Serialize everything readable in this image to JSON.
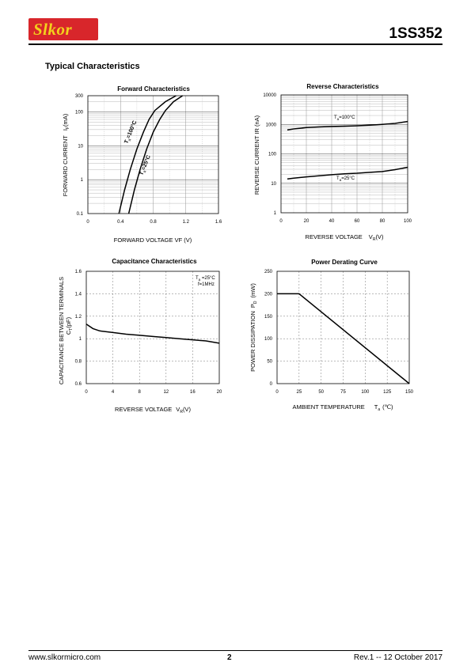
{
  "header": {
    "logo_text": "Slkor",
    "part_number": "1SS352",
    "brand_color": "#d8262b",
    "logo_text_color": "#f3d21c"
  },
  "section_title": "Typical Characteristics",
  "footer": {
    "website": "www.slkormicro.com",
    "page_number": "2",
    "revision": "Rev.1 -- 12 October 2017"
  },
  "chart_data": [
    {
      "type": "line",
      "title": "Forward  Characteristics",
      "xlabel": "FORWARD VOLTAGE  VF (V)",
      "ylabel": "FORWARD CURRENT   IF(mA)",
      "ylabel_main": "FORWARD CURRENT",
      "ylabel_sym": "I",
      "ylabel_sub": "F",
      "ylabel_unit": "(mA)",
      "xlim": [
        0,
        1.6
      ],
      "ylim": [
        0.1,
        300
      ],
      "yscale": "log",
      "xticks": [
        "0",
        "0.4",
        "0.8",
        "1.2",
        "1.6"
      ],
      "yticks": [
        "0.1",
        "1",
        "10",
        "100",
        "300"
      ],
      "grid": true,
      "series": [
        {
          "name": "Ta=100°C",
          "label_main": "T",
          "label_sub": "a",
          "label_rest": "=100°C",
          "x": [
            0.38,
            0.45,
            0.52,
            0.6,
            0.68,
            0.75,
            0.82,
            0.95,
            1.08
          ],
          "y": [
            0.1,
            0.5,
            2,
            8,
            25,
            60,
            110,
            200,
            300
          ]
        },
        {
          "name": "Ta=25°C",
          "label_main": "T",
          "label_sub": "a",
          "label_rest": "=25°C",
          "x": [
            0.5,
            0.57,
            0.64,
            0.72,
            0.8,
            0.88,
            0.95,
            1.05,
            1.16
          ],
          "y": [
            0.1,
            0.5,
            2,
            8,
            25,
            60,
            110,
            200,
            300
          ]
        }
      ]
    },
    {
      "type": "line",
      "title": "Reverse  Characteristics",
      "xlabel": "REVERSE VOLTAGE    VR(V)",
      "xlabel_main": "REVERSE VOLTAGE",
      "xlabel_sym": "V",
      "xlabel_sub": "R",
      "xlabel_unit": "(V)",
      "ylabel": "REVERSE CURRENT   IR  (nA)",
      "xlim": [
        0,
        100
      ],
      "ylim": [
        1,
        10000
      ],
      "yscale": "log",
      "xticks": [
        "0",
        "20",
        "40",
        "60",
        "80",
        "100"
      ],
      "yticks": [
        "1",
        "10",
        "100",
        "1000",
        "10000"
      ],
      "grid": true,
      "series": [
        {
          "name": "Ta=100°C",
          "label_main": "T",
          "label_sub": "a",
          "label_rest": "=100°C",
          "x": [
            5,
            10,
            20,
            30,
            40,
            50,
            60,
            70,
            80,
            90,
            100
          ],
          "y": [
            650,
            700,
            780,
            820,
            850,
            870,
            900,
            940,
            1000,
            1080,
            1250
          ]
        },
        {
          "name": "Ta=25°C",
          "label_main": "T",
          "label_sub": "a",
          "label_rest": "=25°C",
          "x": [
            5,
            10,
            20,
            30,
            40,
            50,
            60,
            70,
            80,
            90,
            100
          ],
          "y": [
            14,
            15,
            16.5,
            18,
            19.5,
            21,
            22,
            23.5,
            25,
            29,
            35
          ]
        }
      ]
    },
    {
      "type": "line",
      "title": "Capacitance Characteristics",
      "xlabel": "REVERSE VOLTAGE   VR(V)",
      "xlabel_main": "REVERSE VOLTAGE",
      "xlabel_sym": "V",
      "xlabel_sub": "R",
      "xlabel_unit": "(V)",
      "ylabel": "CAPACITANCE BETWEEN TERMINALS  CT (pF)",
      "ylabel_main": "CAPACITANCE BETWEEN TERMINALS",
      "ylabel_sym": "C",
      "ylabel_sub": "T",
      "ylabel_unit": "(pF)",
      "xlim": [
        0,
        20
      ],
      "ylim": [
        0.6,
        1.6
      ],
      "xticks": [
        "0",
        "4",
        "8",
        "12",
        "16",
        "20"
      ],
      "yticks": [
        "0.6",
        "0.8",
        "1",
        "1.2",
        "1.4",
        "1.6"
      ],
      "grid": true,
      "annotation": [
        "Ta =25°C",
        "f=1MHz"
      ],
      "annotation_sym": "T",
      "annotation_sub": "a",
      "annotation_rest": " =25°C",
      "series": [
        {
          "name": "",
          "x": [
            0,
            1,
            2,
            4,
            6,
            8,
            10,
            12,
            14,
            16,
            18,
            20
          ],
          "y": [
            1.13,
            1.09,
            1.07,
            1.055,
            1.04,
            1.03,
            1.02,
            1.01,
            1.0,
            0.99,
            0.98,
            0.96
          ]
        }
      ]
    },
    {
      "type": "line",
      "title": "Power Derating Curve",
      "xlabel": "AMBIENT TEMPERATURE     Ta  (℃)",
      "xlabel_main": "AMBIENT TEMPERATURE",
      "xlabel_sym": "T",
      "xlabel_sub": "a",
      "xlabel_unit": "(℃)",
      "ylabel": "POWER  DISSIPATION  PD   (mW)",
      "ylabel_main": "POWER  DISSIPATION",
      "ylabel_sym": "P",
      "ylabel_sub": "D",
      "ylabel_unit": "(mW)",
      "xlim": [
        0,
        150
      ],
      "ylim": [
        0,
        250
      ],
      "xticks": [
        "0",
        "25",
        "50",
        "75",
        "100",
        "125",
        "150"
      ],
      "yticks": [
        "0",
        "50",
        "100",
        "150",
        "200",
        "250"
      ],
      "grid": true,
      "series": [
        {
          "name": "",
          "x": [
            0,
            25,
            150
          ],
          "y": [
            200,
            200,
            0
          ]
        }
      ]
    }
  ]
}
